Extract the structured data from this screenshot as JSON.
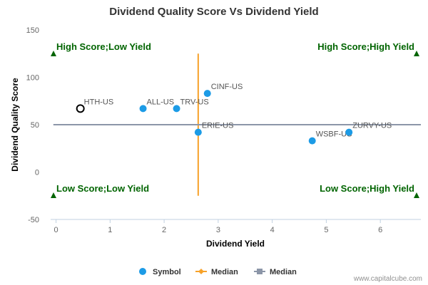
{
  "chart_data": {
    "type": "scatter",
    "title": "Dividend Quality Score Vs Dividend Yield",
    "xlabel": "Dividend Yield",
    "ylabel": "Dividend Quality Score",
    "xlim": [
      -0.1,
      6.75
    ],
    "ylim": [
      -50,
      150
    ],
    "x_ticks": [
      "0",
      "1",
      "2",
      "3",
      "4",
      "5",
      "6"
    ],
    "y_ticks": [
      "-50",
      "0",
      "50",
      "100",
      "150"
    ],
    "grid": false,
    "legend_position": "bottom",
    "series": [
      {
        "name": "Symbol",
        "color": "#1c9be6",
        "points": [
          {
            "label": "HTH-US",
            "x": 0.45,
            "y": 67,
            "highlighted": true
          },
          {
            "label": "ALL-US",
            "x": 1.61,
            "y": 67
          },
          {
            "label": "TRV-US",
            "x": 2.23,
            "y": 67
          },
          {
            "label": "CINF-US",
            "x": 2.8,
            "y": 83
          },
          {
            "label": "ERIE-US",
            "x": 2.63,
            "y": 42
          },
          {
            "label": "WSBF-US",
            "x": 4.74,
            "y": 33
          },
          {
            "label": "ZURVY-US",
            "x": 5.42,
            "y": 42
          }
        ]
      },
      {
        "name": "Median",
        "color": "#f7a229",
        "orientation": "vertical",
        "x": 2.63,
        "y_range": [
          -25,
          125
        ]
      },
      {
        "name": "Median",
        "color": "#8c96a8",
        "orientation": "horizontal",
        "y": 50,
        "x_range": [
          -0.05,
          6.75
        ]
      }
    ],
    "quadrants": {
      "top_left": "High Score;Low Yield",
      "top_right": "High Score;High Yield",
      "bottom_left": "Low Score;Low Yield",
      "bottom_right": "Low Score;High Yield"
    },
    "quadrant_color": "#006400"
  },
  "credit": "www.capitalcube.com"
}
